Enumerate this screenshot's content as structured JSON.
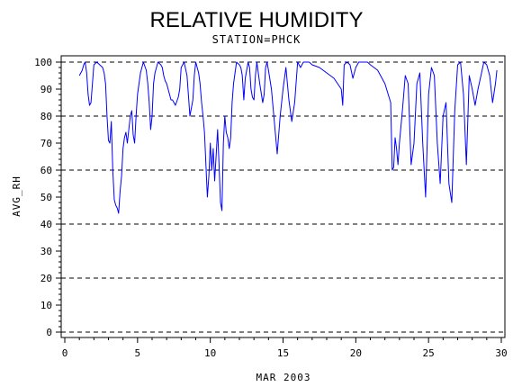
{
  "chart_data": {
    "type": "line",
    "title": "RELATIVE HUMIDITY",
    "subtitle": "STATION=PHCK",
    "xlabel": "MAR 2003",
    "ylabel": "AVG_RH",
    "xlim": [
      0,
      30
    ],
    "ylim": [
      0,
      100
    ],
    "x_ticks": [
      0,
      5,
      10,
      15,
      20,
      25,
      30
    ],
    "y_ticks": [
      0,
      10,
      20,
      30,
      40,
      50,
      60,
      70,
      80,
      90,
      100
    ],
    "reference_lines": [
      0,
      20,
      40,
      60,
      80,
      100
    ],
    "grid": false,
    "series": [
      {
        "color": "#0000ff",
        "x": [
          1.0,
          1.1,
          1.2,
          1.3,
          1.4,
          1.5,
          1.6,
          1.7,
          1.8,
          1.9,
          2.0,
          2.2,
          2.4,
          2.6,
          2.7,
          2.8,
          2.9,
          3.0,
          3.1,
          3.2,
          3.3,
          3.4,
          3.5,
          3.6,
          3.7,
          3.8,
          3.9,
          4.0,
          4.1,
          4.2,
          4.3,
          4.4,
          4.5,
          4.6,
          4.7,
          4.8,
          4.9,
          5.0,
          5.2,
          5.4,
          5.6,
          5.7,
          5.8,
          5.9,
          6.0,
          6.1,
          6.2,
          6.4,
          6.6,
          6.7,
          6.8,
          6.9,
          7.0,
          7.1,
          7.2,
          7.3,
          7.4,
          7.5,
          7.6,
          7.8,
          7.9,
          8.0,
          8.2,
          8.4,
          8.6,
          8.8,
          8.9,
          9.0,
          9.1,
          9.2,
          9.3,
          9.4,
          9.5,
          9.6,
          9.7,
          9.8,
          9.9,
          10.0,
          10.1,
          10.2,
          10.3,
          10.4,
          10.5,
          10.6,
          10.7,
          10.8,
          10.9,
          11.0,
          11.1,
          11.2,
          11.3,
          11.4,
          11.5,
          11.6,
          11.8,
          12.0,
          12.1,
          12.2,
          12.3,
          12.4,
          12.6,
          12.7,
          12.8,
          12.9,
          13.0,
          13.1,
          13.2,
          13.4,
          13.6,
          13.7,
          13.8,
          13.9,
          14.0,
          14.2,
          14.4,
          14.6,
          14.8,
          15.0,
          15.2,
          15.4,
          15.6,
          15.8,
          16.0,
          16.2,
          16.4,
          16.6,
          16.8,
          17.0,
          17.5,
          18.0,
          18.5,
          19.0,
          19.1,
          19.2,
          19.4,
          19.6,
          19.8,
          20.0,
          20.2,
          20.4,
          20.6,
          20.8,
          21.0,
          21.5,
          22.0,
          22.4,
          22.5,
          22.6,
          22.7,
          22.8,
          22.9,
          23.0,
          23.2,
          23.4,
          23.6,
          23.8,
          24.0,
          24.2,
          24.4,
          24.6,
          24.8,
          24.9,
          25.0,
          25.2,
          25.4,
          25.6,
          25.8,
          26.0,
          26.2,
          26.4,
          26.6,
          26.8,
          27.0,
          27.2,
          27.4,
          27.6,
          27.8,
          28.0,
          28.2,
          28.4,
          28.6,
          28.8,
          29.0,
          29.2,
          29.4,
          29.6,
          29.7
        ],
        "values": [
          95,
          96,
          97,
          99,
          100,
          96,
          88,
          84,
          85,
          92,
          99,
          100,
          99,
          98,
          96,
          92,
          80,
          71,
          70,
          78,
          60,
          49,
          47,
          46,
          44,
          52,
          58,
          68,
          72,
          74,
          70,
          75,
          80,
          82,
          73,
          70,
          80,
          88,
          96,
          100,
          97,
          92,
          85,
          75,
          80,
          92,
          96,
          100,
          99,
          98,
          95,
          93,
          92,
          90,
          88,
          86,
          86,
          85,
          84,
          87,
          90,
          98,
          100,
          95,
          80,
          86,
          95,
          100,
          98,
          96,
          92,
          85,
          80,
          74,
          62,
          50,
          58,
          70,
          60,
          68,
          56,
          65,
          75,
          62,
          48,
          45,
          70,
          80,
          74,
          72,
          68,
          72,
          85,
          92,
          100,
          99,
          98,
          95,
          86,
          94,
          100,
          98,
          90,
          87,
          86,
          95,
          100,
          92,
          85,
          88,
          98,
          100,
          97,
          90,
          78,
          66,
          80,
          90,
          98,
          86,
          78,
          85,
          100,
          98,
          100,
          100,
          100,
          99,
          98,
          96,
          94,
          90,
          84,
          99,
          100,
          99,
          94,
          98,
          100,
          100,
          100,
          100,
          99,
          97,
          92,
          85,
          60,
          61,
          72,
          68,
          62,
          70,
          82,
          95,
          92,
          62,
          70,
          92,
          96,
          70,
          50,
          68,
          88,
          98,
          95,
          70,
          55,
          80,
          85,
          55,
          48,
          82,
          99,
          100,
          88,
          62,
          95,
          90,
          84,
          90,
          95,
          100,
          99,
          95,
          85,
          92,
          97
        ],
        "line_width": 1
      }
    ]
  }
}
